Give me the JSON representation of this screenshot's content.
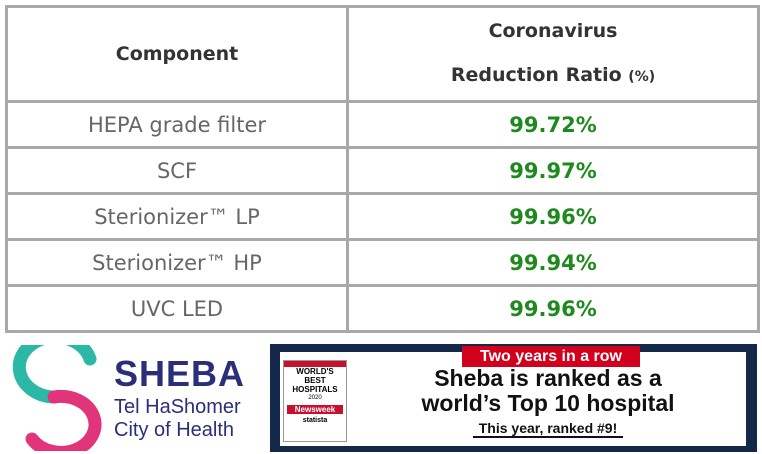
{
  "table": {
    "header": [
      "Component",
      {
        "line1": "Coronavirus",
        "line2": "Reduction Ratio",
        "unit": "(%)"
      }
    ],
    "rows": [
      [
        "HEPA grade filter",
        "99.72%"
      ],
      [
        "SCF",
        "99.97%"
      ],
      [
        "Sterionizer™ LP",
        "99.96%"
      ],
      [
        "Sterionizer™ HP",
        "99.94%"
      ],
      [
        "UVC LED",
        "99.96%"
      ]
    ]
  },
  "logo": {
    "name": "SHEBA",
    "line1": "Tel HaShomer",
    "line2": "City of Health"
  },
  "banner": {
    "tag": "Two years in a row",
    "headline1": "Sheba is ranked as a",
    "headline2": "world’s Top 10 hospital",
    "subline": "This year, ranked #9!",
    "badge": {
      "line1": "WORLD'S",
      "line2": "BEST",
      "line3": "HOSPITALS",
      "year": "2020",
      "publisher": "Newsweek",
      "partner": "statista"
    }
  }
}
